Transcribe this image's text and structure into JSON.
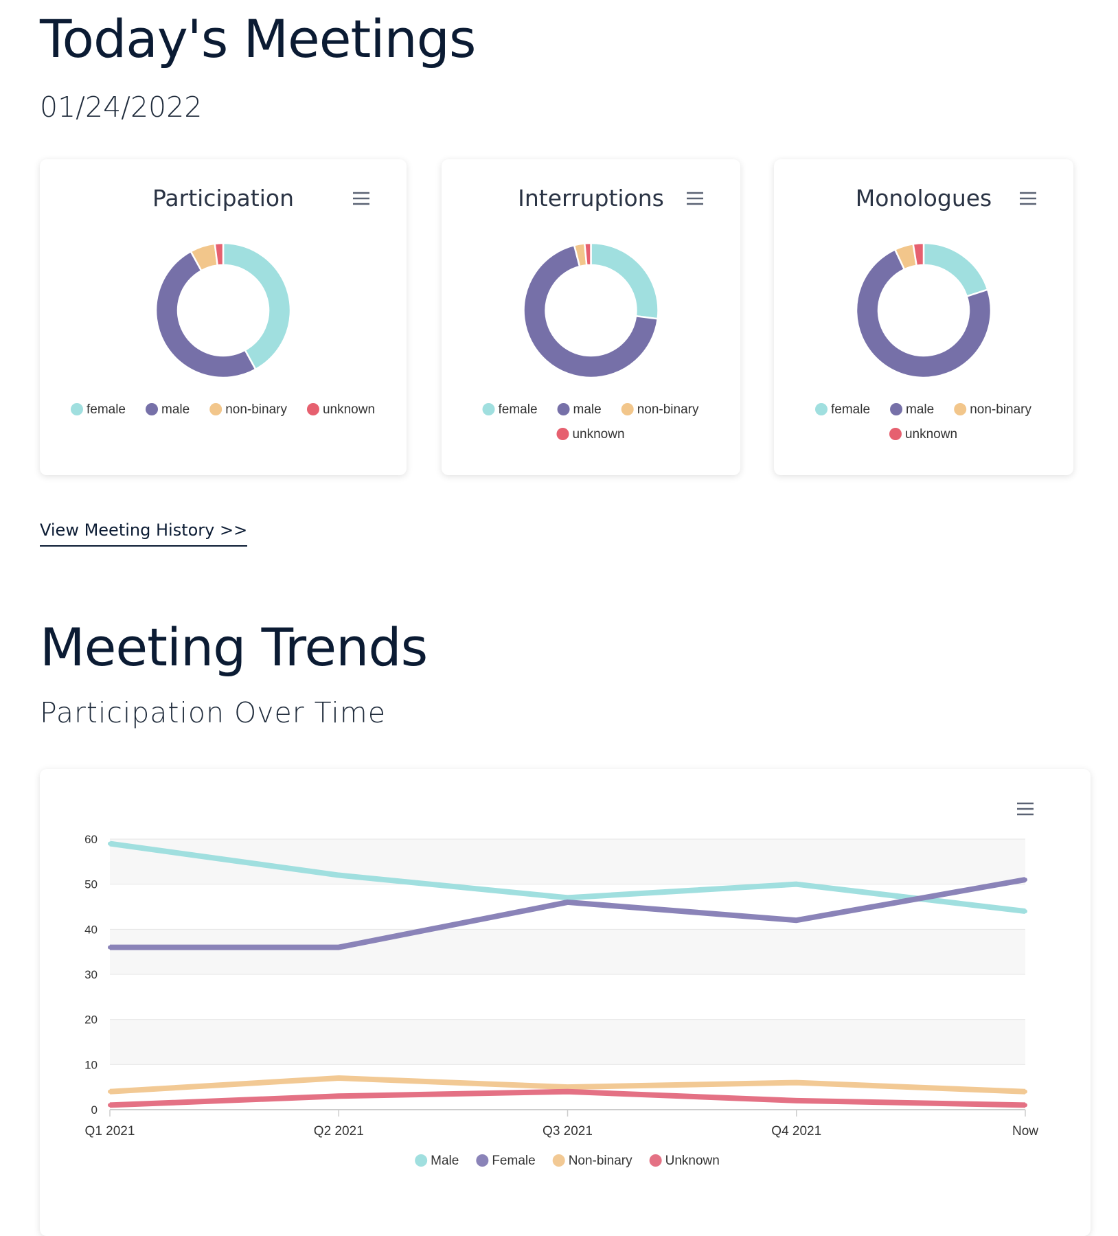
{
  "today": {
    "title": "Today's Meetings",
    "date": "01/24/2022"
  },
  "donut_cards": [
    {
      "title": "Participation"
    },
    {
      "title": "Interruptions"
    },
    {
      "title": "Monologues"
    }
  ],
  "history_link": "View Meeting History >>",
  "trends": {
    "title": "Meeting Trends",
    "subtitle": "Participation Over Time"
  },
  "colors": {
    "female": "#a0dfdf",
    "male": "#7670a8",
    "nonbinary": "#f2c68b",
    "unknown": "#e6606f",
    "Male": "#a0dfdf",
    "Female": "#8a83b8",
    "Non-binary": "#f2c994",
    "Unknown": "#e47184",
    "text": "#0b1b33",
    "axis_text": "#333333",
    "menu": "#5a6273"
  },
  "chart_data": [
    {
      "type": "pie",
      "variant": "donut",
      "title": "Participation",
      "labels": [
        "female",
        "male",
        "non-binary",
        "unknown"
      ],
      "values": [
        42,
        50,
        6,
        2
      ],
      "legend": "bottom"
    },
    {
      "type": "pie",
      "variant": "donut",
      "title": "Interruptions",
      "labels": [
        "female",
        "male",
        "non-binary",
        "unknown"
      ],
      "values": [
        27,
        69,
        2.5,
        1.5
      ],
      "legend": "bottom"
    },
    {
      "type": "pie",
      "variant": "donut",
      "title": "Monologues",
      "labels": [
        "female",
        "male",
        "non-binary",
        "unknown"
      ],
      "values": [
        20,
        73,
        4.5,
        2.5
      ],
      "legend": "bottom"
    },
    {
      "type": "line",
      "title": "",
      "categories": [
        "Q1 2021",
        "Q2 2021",
        "Q3 2021",
        "Q4 2021",
        "Now"
      ],
      "series": [
        {
          "name": "Male",
          "values": [
            59,
            52,
            47,
            50,
            44
          ]
        },
        {
          "name": "Female",
          "values": [
            36,
            36,
            46,
            42,
            51
          ]
        },
        {
          "name": "Non-binary",
          "values": [
            4,
            7,
            5,
            6,
            4
          ]
        },
        {
          "name": "Unknown",
          "values": [
            1,
            3,
            4,
            2,
            1
          ]
        }
      ],
      "ylim": [
        0,
        60
      ],
      "yticks": [
        0,
        10,
        20,
        30,
        40,
        50,
        60
      ],
      "grid": true,
      "legend": "bottom"
    }
  ]
}
